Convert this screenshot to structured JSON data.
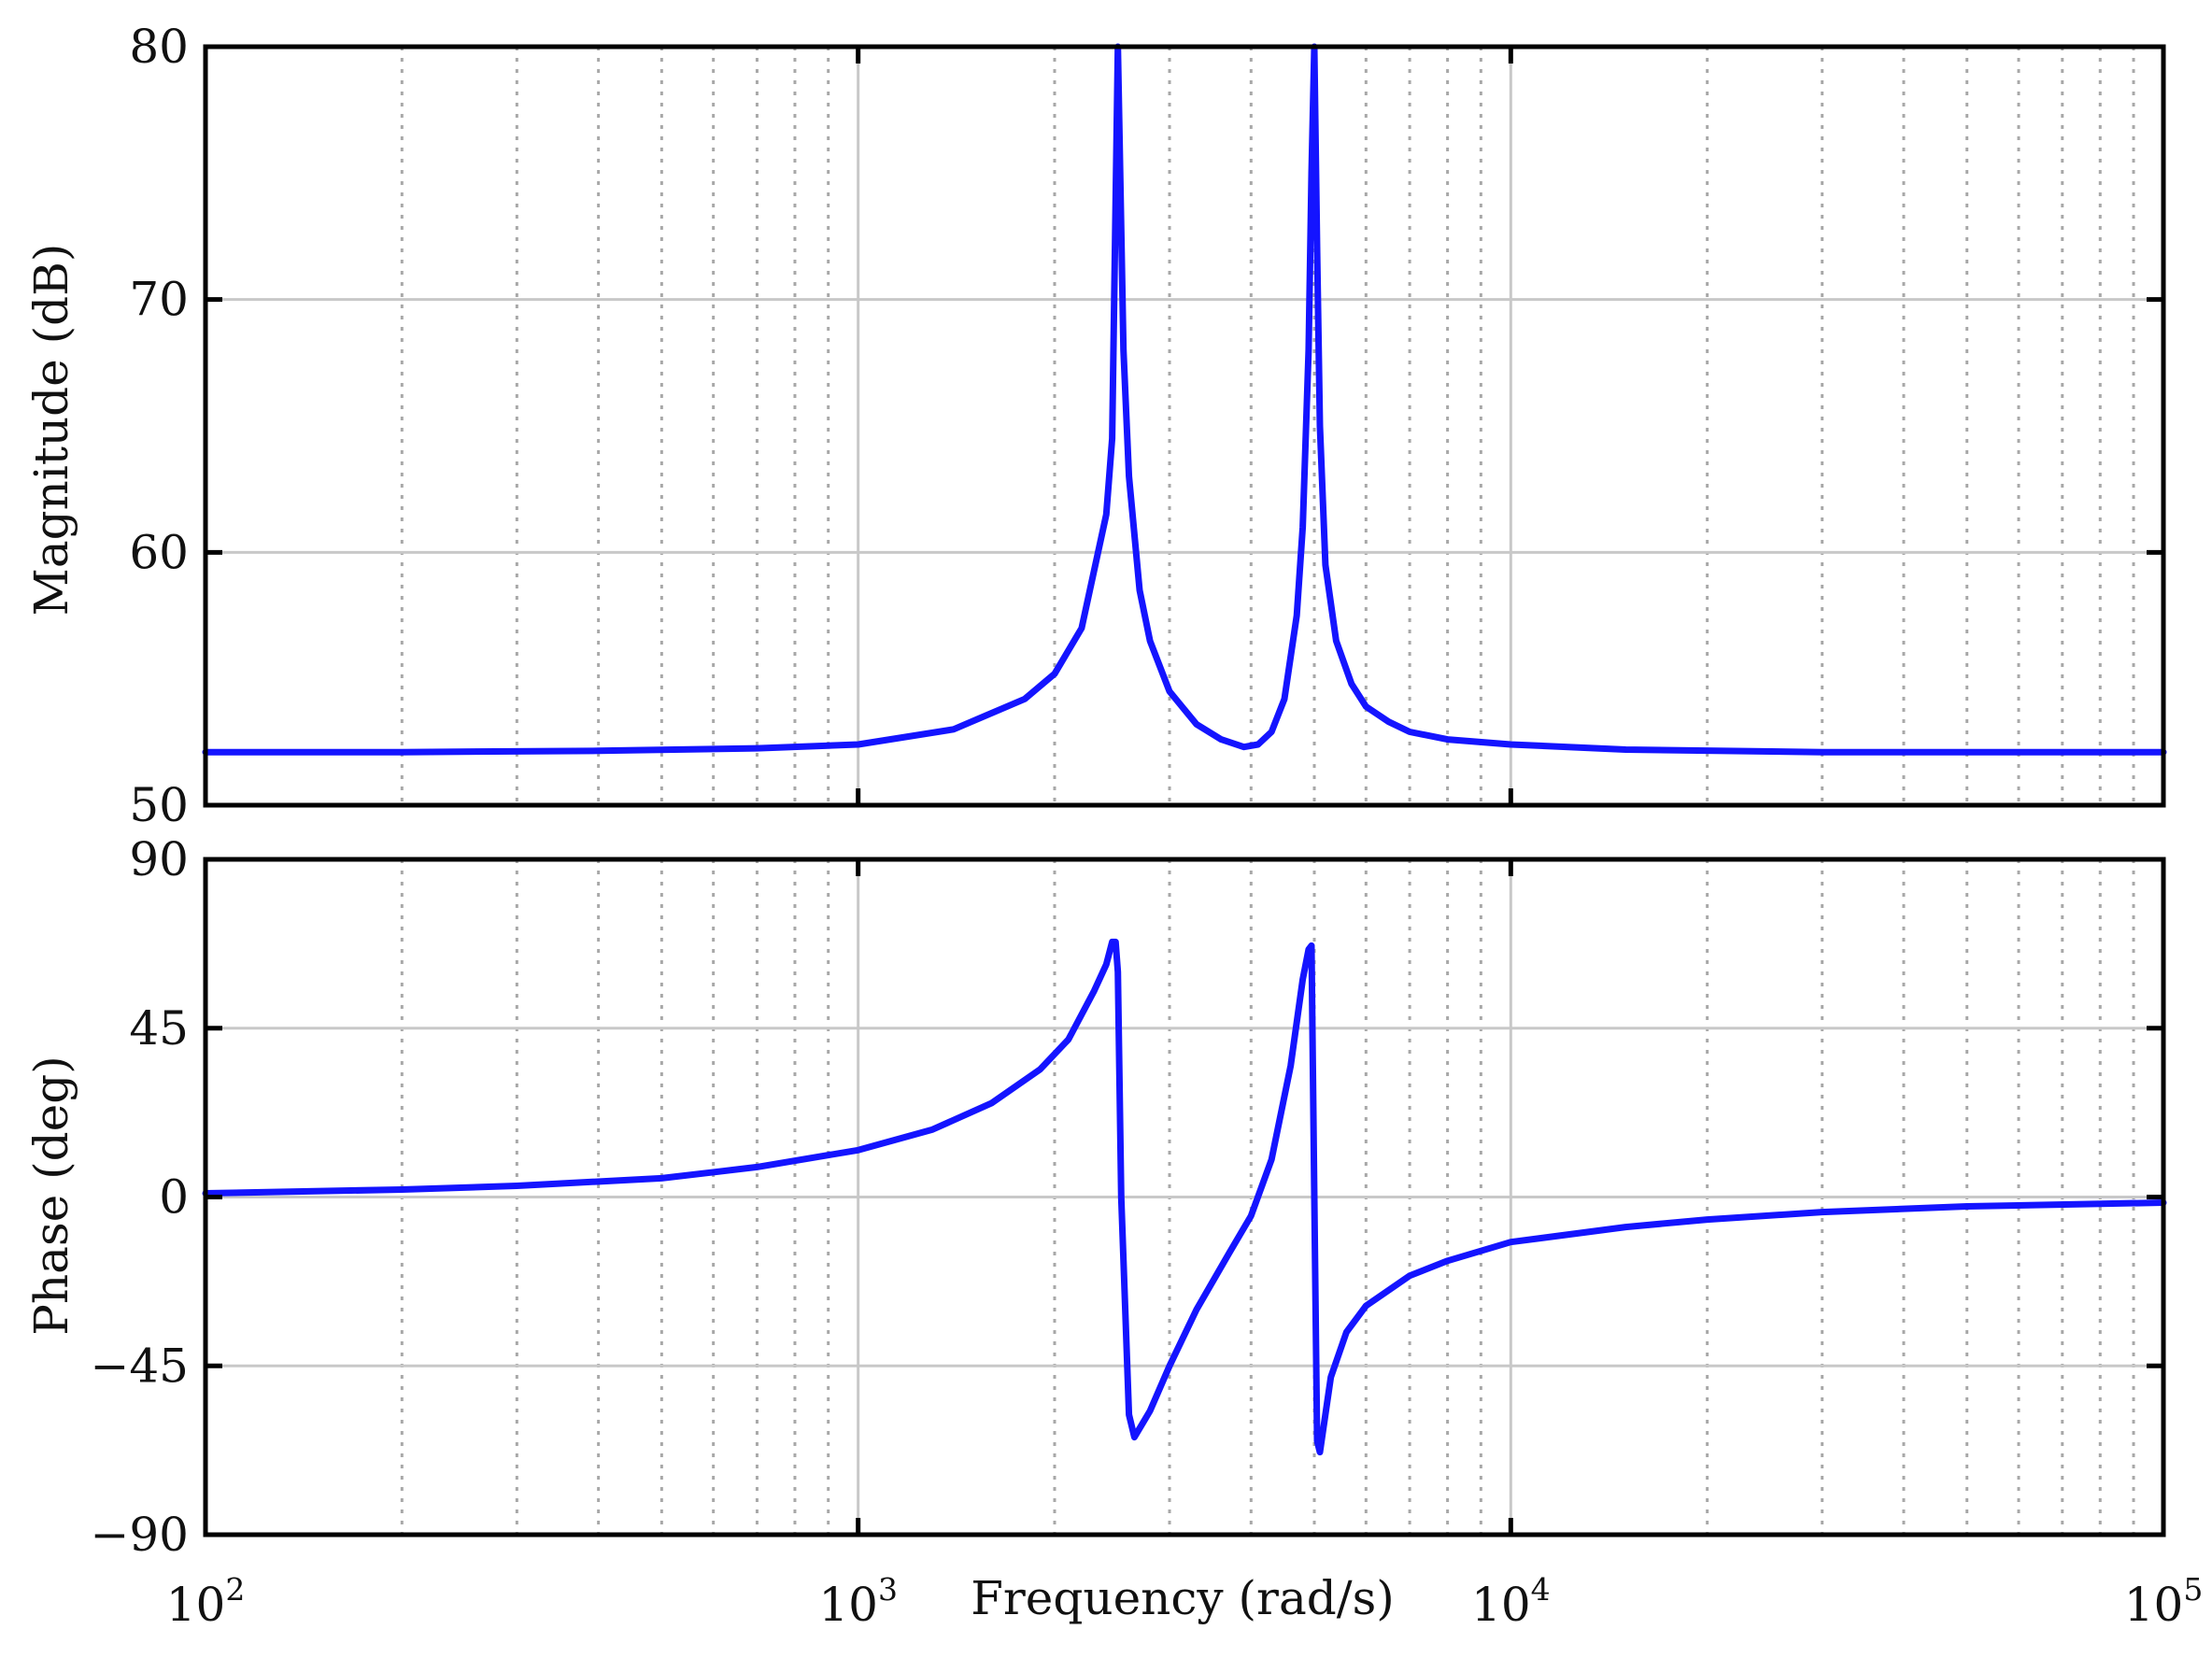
{
  "chart_data": {
    "type": "line",
    "xlabel": "Frequency (rad/s)",
    "xscale": "log",
    "xlim": [
      100,
      100000
    ],
    "x_ticks": [
      {
        "base": "10",
        "exp": "2"
      },
      {
        "base": "10",
        "exp": "3"
      },
      {
        "base": "10",
        "exp": "4"
      },
      {
        "base": "10",
        "exp": "5"
      }
    ],
    "grid": true,
    "color": "#1414ff",
    "panels": [
      {
        "name": "magnitude",
        "ylabel": "Magnitude (dB)",
        "ylim": [
          50,
          80
        ],
        "yticks": [
          "50",
          "60",
          "70",
          "80"
        ],
        "ytick_values": [
          50,
          60,
          70,
          80
        ],
        "x": [
          100,
          200,
          400,
          700,
          1000,
          1400,
          1800,
          2000,
          2200,
          2400,
          2450,
          2500,
          2550,
          2600,
          2700,
          2800,
          3000,
          3300,
          3600,
          3900,
          4100,
          4300,
          4500,
          4700,
          4800,
          4900,
          4950,
          5000,
          5050,
          5100,
          5200,
          5400,
          5700,
          6000,
          6500,
          7000,
          8000,
          10000,
          15000,
          30000,
          100000
        ],
        "y": [
          52.1,
          52.1,
          52.15,
          52.25,
          52.4,
          53.0,
          54.2,
          55.2,
          57.0,
          61.5,
          64.5,
          80.0,
          68.0,
          63.0,
          58.5,
          56.5,
          54.5,
          53.2,
          52.6,
          52.3,
          52.4,
          52.9,
          54.2,
          57.5,
          61.0,
          68.0,
          75.0,
          80.0,
          72.0,
          65.0,
          59.5,
          56.5,
          54.8,
          53.9,
          53.3,
          52.9,
          52.6,
          52.4,
          52.2,
          52.1,
          52.1
        ]
      },
      {
        "name": "phase",
        "ylabel": "Phase (deg)",
        "ylim": [
          -90,
          90
        ],
        "yticks": [
          "−90",
          "−45",
          "0",
          "45",
          "90"
        ],
        "ytick_values": [
          -90,
          -45,
          0,
          45,
          90
        ],
        "x": [
          100,
          200,
          300,
          500,
          700,
          1000,
          1300,
          1600,
          1900,
          2100,
          2300,
          2400,
          2450,
          2480,
          2500,
          2530,
          2600,
          2650,
          2800,
          3000,
          3300,
          3700,
          4000,
          4300,
          4600,
          4800,
          4900,
          4950,
          5000,
          5050,
          5100,
          5300,
          5600,
          6000,
          7000,
          8000,
          10000,
          15000,
          20000,
          30000,
          50000,
          100000
        ],
        "y": [
          1,
          2,
          3,
          5,
          8,
          12.5,
          18,
          25,
          34,
          42,
          55,
          62,
          68,
          68,
          60,
          0,
          -58,
          -64,
          -57,
          -45,
          -30,
          -15,
          -5,
          10,
          35,
          58,
          66,
          67,
          0,
          -65,
          -68,
          -48,
          -36,
          -29,
          -21,
          -17,
          -12,
          -8,
          -6,
          -4,
          -2.5,
          -1.5
        ]
      }
    ]
  }
}
